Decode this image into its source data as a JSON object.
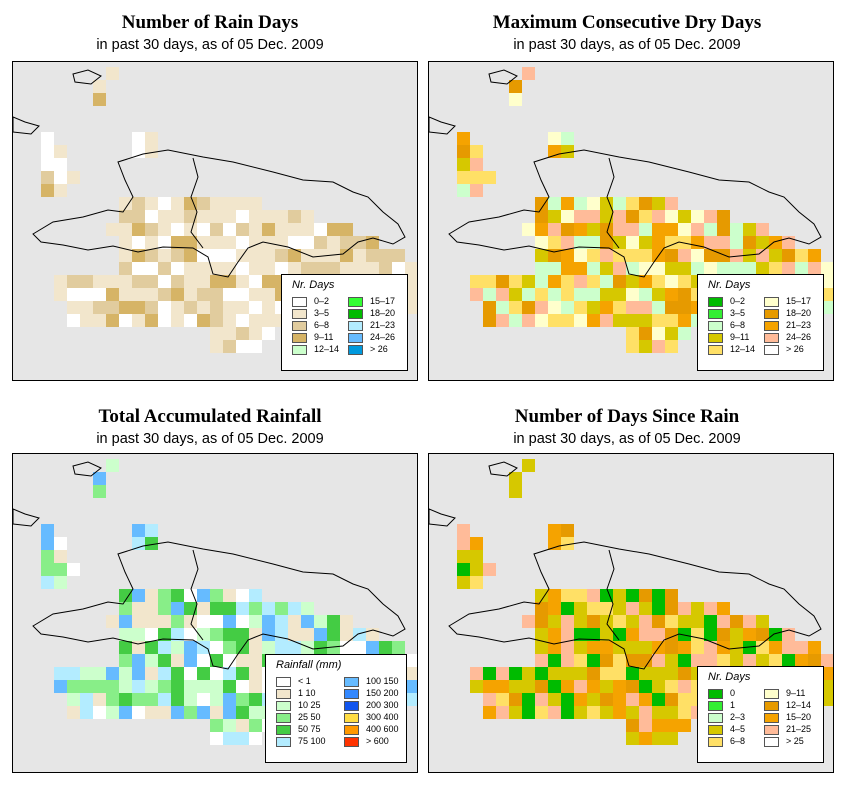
{
  "panels": [
    {
      "title": "Number of Rain Days",
      "subtitle": "in past 30 days, as of  05 Dec. 2009",
      "legend": {
        "title": "Nr. Days",
        "items": [
          {
            "label": "0–2",
            "color": "#ffffff"
          },
          {
            "label": "3–5",
            "color": "#f2e6cc"
          },
          {
            "label": "6–8",
            "color": "#e1cc9e"
          },
          {
            "label": "9–11",
            "color": "#d6b466"
          },
          {
            "label": "12–14",
            "color": "#ccffcc"
          },
          {
            "label": "15–17",
            "color": "#33ff33"
          },
          {
            "label": "18–20",
            "color": "#00bb00"
          },
          {
            "label": "21–23",
            "color": "#b3ecff"
          },
          {
            "label": "24–26",
            "color": "#66bbff"
          },
          {
            "label": "> 26",
            "color": "#0099dd"
          }
        ]
      }
    },
    {
      "title": "Maximum Consecutive Dry Days",
      "subtitle": "in past 30 days, as of  05 Dec. 2009",
      "legend": {
        "title": "Nr. Days",
        "items": [
          {
            "label": "0–2",
            "color": "#00bb00"
          },
          {
            "label": "3–5",
            "color": "#33ee33"
          },
          {
            "label": "6–8",
            "color": "#ccffcc"
          },
          {
            "label": "9–11",
            "color": "#d6c800"
          },
          {
            "label": "12–14",
            "color": "#ffe066"
          },
          {
            "label": "15–17",
            "color": "#ffffcc"
          },
          {
            "label": "18–20",
            "color": "#e69a00"
          },
          {
            "label": "21–23",
            "color": "#f5a300"
          },
          {
            "label": "24–26",
            "color": "#ffbb99"
          },
          {
            "label": "> 26",
            "color": "#ffffff"
          }
        ]
      }
    },
    {
      "title": "Total Accumulated Rainfall",
      "subtitle": "in past 30 days, as of  05 Dec. 2009",
      "legend": {
        "title": "Rainfall (mm)",
        "items": [
          {
            "label": "< 1",
            "color": "#ffffff"
          },
          {
            "label": "1    10",
            "color": "#f2e6cc"
          },
          {
            "label": "10    25",
            "color": "#ccffcc"
          },
          {
            "label": "25    50",
            "color": "#88ee88"
          },
          {
            "label": "50    75",
            "color": "#44cc44"
          },
          {
            "label": "75  100",
            "color": "#b3ecff"
          },
          {
            "label": "100  150",
            "color": "#66bbff"
          },
          {
            "label": "150  200",
            "color": "#3388ff"
          },
          {
            "label": "200  300",
            "color": "#1155ee"
          },
          {
            "label": "300  400",
            "color": "#ffdd44"
          },
          {
            "label": "400  600",
            "color": "#ff9900"
          },
          {
            "label": "> 600",
            "color": "#ff3300"
          }
        ]
      }
    },
    {
      "title": "Number of Days Since Rain",
      "subtitle": "in past 30 days, as of  05 Dec. 2009",
      "legend": {
        "title": "Nr. Days",
        "items": [
          {
            "label": "0",
            "color": "#00bb00"
          },
          {
            "label": "1",
            "color": "#33ee33"
          },
          {
            "label": "2–3",
            "color": "#ccffcc"
          },
          {
            "label": "4–5",
            "color": "#d6c800"
          },
          {
            "label": "6–8",
            "color": "#ffe066"
          },
          {
            "label": "9–11",
            "color": "#ffffcc"
          },
          {
            "label": "12–14",
            "color": "#e69a00"
          },
          {
            "label": "15–20",
            "color": "#f5a300"
          },
          {
            "label": "21–25",
            "color": "#ffbb99"
          },
          {
            "label": "> 25",
            "color": "#ffffff"
          }
        ]
      }
    }
  ]
}
